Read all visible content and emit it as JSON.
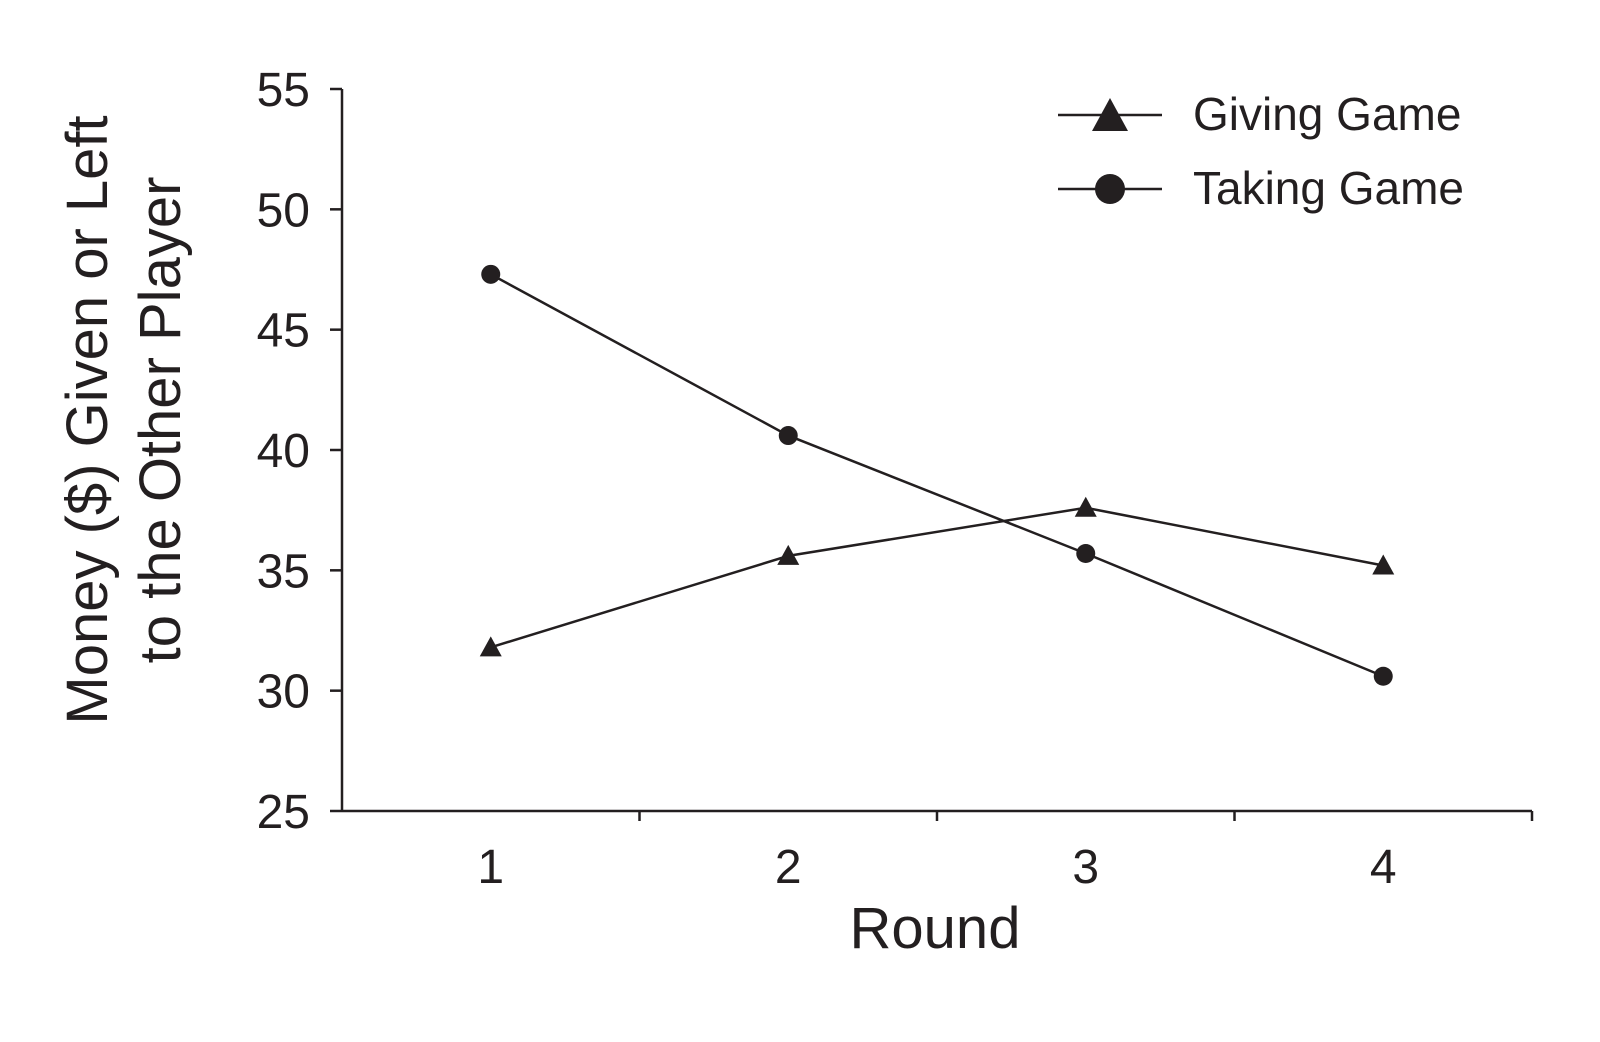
{
  "chart_data": {
    "type": "line",
    "title": "",
    "xlabel": "Round",
    "ylabel_lines": [
      "Money ($) Given or Left",
      "to the Other Player"
    ],
    "x": [
      1,
      2,
      3,
      4
    ],
    "x_tick_labels": [
      "1",
      "2",
      "3",
      "4"
    ],
    "xlim": [
      0.5,
      4.5
    ],
    "ylim": [
      25,
      55
    ],
    "y_ticks": [
      25,
      30,
      35,
      40,
      45,
      50,
      55
    ],
    "y_tick_labels": [
      "25",
      "30",
      "35",
      "40",
      "45",
      "50",
      "55"
    ],
    "grid": false,
    "legend_position": "top-right",
    "series": [
      {
        "name": "Giving Game",
        "marker": "triangle",
        "values": [
          31.8,
          35.6,
          37.6,
          35.2
        ]
      },
      {
        "name": "Taking Game",
        "marker": "circle",
        "values": [
          47.3,
          40.6,
          35.7,
          30.6
        ]
      }
    ],
    "colors": {
      "line": "#231f20",
      "marker": "#231f20",
      "axis": "#231f20"
    }
  }
}
